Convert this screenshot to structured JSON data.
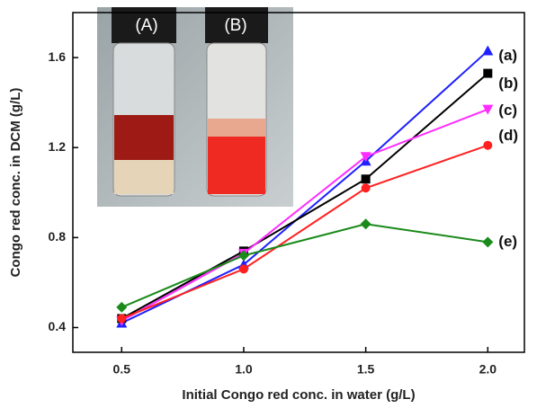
{
  "chart_data": {
    "type": "line",
    "x_label": "Initial Congo red conc. in water (g/L)",
    "y_label": "Congo red conc. in DCM (g/L)",
    "inset_labels": [
      "(A)",
      "(B)"
    ],
    "x": [
      0.5,
      1,
      1.5,
      2
    ],
    "xlim": [
      0.3,
      2.15
    ],
    "xticks": [
      0.5,
      {
        "value": 1,
        "label": "1.0"
      },
      1.5,
      {
        "value": 2,
        "label": "2.0"
      }
    ],
    "ylim": [
      0.29,
      1.8
    ],
    "yticks": [
      0.4,
      0.8,
      1.2,
      1.6
    ],
    "series": [
      {
        "name": "(a)",
        "color": "#1f1fff",
        "marker": "triangle",
        "values": [
          0.42,
          0.68,
          1.14,
          1.63
        ]
      },
      {
        "name": "(b)",
        "color": "#000000",
        "marker": "square",
        "values": [
          0.44,
          0.74,
          1.06,
          1.53
        ]
      },
      {
        "name": "(c)",
        "color": "#ff2cff",
        "marker": "triangle-down",
        "values": [
          0.43,
          0.73,
          1.16,
          1.37
        ]
      },
      {
        "name": "(d)",
        "color": "#ff2020",
        "marker": "circle",
        "values": [
          0.44,
          0.66,
          1.02,
          1.21
        ]
      },
      {
        "name": "(e)",
        "color": "#1a8a1a",
        "marker": "diamond",
        "values": [
          0.49,
          0.72,
          0.86,
          0.78
        ]
      }
    ]
  }
}
